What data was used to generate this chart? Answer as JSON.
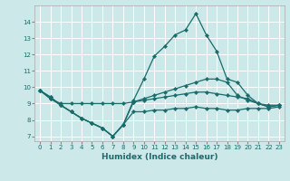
{
  "xlabel": "Humidex (Indice chaleur)",
  "xlim": [
    -0.5,
    23.5
  ],
  "ylim": [
    6.7,
    15.0
  ],
  "yticks": [
    7,
    8,
    9,
    10,
    11,
    12,
    13,
    14
  ],
  "xticks": [
    0,
    1,
    2,
    3,
    4,
    5,
    6,
    7,
    8,
    9,
    10,
    11,
    12,
    13,
    14,
    15,
    16,
    17,
    18,
    19,
    20,
    21,
    22,
    23
  ],
  "bg_color": "#cce8e8",
  "line_color": "#1a6b6b",
  "grid_color": "#ffffff",
  "lines": [
    {
      "x": [
        0,
        1,
        2,
        3,
        4,
        5,
        6,
        7,
        8,
        9,
        10,
        11,
        12,
        13,
        14,
        15,
        16,
        17,
        18,
        19,
        20,
        21,
        22,
        23
      ],
      "y": [
        9.8,
        9.4,
        8.9,
        8.5,
        8.1,
        7.8,
        7.5,
        7.0,
        7.7,
        9.2,
        10.5,
        11.9,
        12.5,
        13.2,
        13.5,
        14.5,
        13.2,
        12.2,
        10.5,
        10.3,
        9.5,
        9.0,
        8.8,
        8.9
      ]
    },
    {
      "x": [
        0,
        1,
        2,
        3,
        4,
        5,
        6,
        7,
        8,
        9,
        10,
        11,
        12,
        13,
        14,
        15,
        16,
        17,
        18,
        19,
        20,
        21,
        22,
        23
      ],
      "y": [
        9.8,
        9.4,
        8.9,
        8.5,
        8.1,
        7.8,
        7.5,
        7.0,
        7.7,
        9.1,
        9.3,
        9.5,
        9.7,
        9.9,
        10.1,
        10.3,
        10.5,
        10.5,
        10.3,
        9.5,
        9.2,
        9.0,
        8.8,
        8.9
      ]
    },
    {
      "x": [
        0,
        1,
        2,
        3,
        4,
        5,
        6,
        7,
        8,
        9,
        10,
        11,
        12,
        13,
        14,
        15,
        16,
        17,
        18,
        19,
        20,
        21,
        22,
        23
      ],
      "y": [
        9.8,
        9.3,
        9.0,
        9.0,
        9.0,
        9.0,
        9.0,
        9.0,
        9.0,
        9.1,
        9.2,
        9.3,
        9.4,
        9.5,
        9.6,
        9.7,
        9.7,
        9.6,
        9.5,
        9.4,
        9.3,
        9.0,
        8.9,
        8.9
      ]
    },
    {
      "x": [
        0,
        1,
        2,
        3,
        4,
        5,
        6,
        7,
        8,
        9,
        10,
        11,
        12,
        13,
        14,
        15,
        16,
        17,
        18,
        19,
        20,
        21,
        22,
        23
      ],
      "y": [
        9.8,
        9.3,
        8.9,
        8.5,
        8.1,
        7.8,
        7.5,
        7.0,
        7.7,
        8.5,
        8.5,
        8.6,
        8.6,
        8.7,
        8.7,
        8.8,
        8.7,
        8.7,
        8.6,
        8.6,
        8.7,
        8.7,
        8.7,
        8.8
      ]
    }
  ]
}
